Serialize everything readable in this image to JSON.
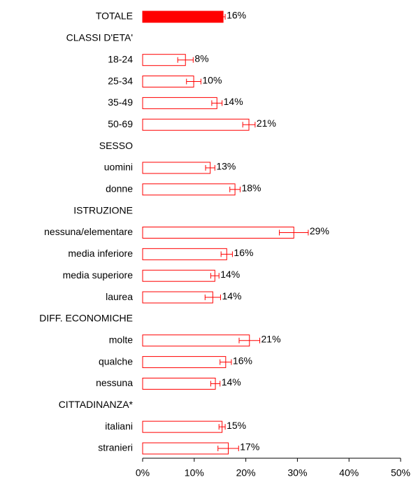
{
  "chart_data": {
    "type": "bar",
    "orientation": "horizontal",
    "color": "#ff0000",
    "categories": [
      "TOTALE",
      "CLASSI D'ETA'",
      "18-24",
      "25-34",
      "35-49",
      "50-69",
      "SESSO",
      "uomini",
      "donne",
      "ISTRUZIONE",
      "nessuna/elementare",
      "media inferiore",
      "media superiore",
      "laurea",
      "DIFF. ECONOMICHE",
      "molte",
      "qualche",
      "nessuna",
      "CITTADINANZA*",
      "italiani",
      "stranieri"
    ],
    "values": [
      15.6,
      null,
      8.3,
      9.9,
      14.4,
      20.6,
      null,
      13.1,
      17.9,
      null,
      29.3,
      16.3,
      14.0,
      13.6,
      null,
      20.7,
      16.1,
      14.1,
      null,
      15.4,
      16.6
    ],
    "errors": [
      0.4,
      null,
      1.5,
      1.4,
      1.0,
      1.2,
      null,
      0.9,
      1.0,
      null,
      2.8,
      1.1,
      0.8,
      1.5,
      null,
      2.0,
      1.1,
      0.9,
      null,
      0.6,
      2.0
    ],
    "value_labels": [
      "16%",
      null,
      "8%",
      "10%",
      "14%",
      "21%",
      null,
      "13%",
      "18%",
      null,
      "29%",
      "16%",
      "14%",
      "14%",
      null,
      "21%",
      "16%",
      "14%",
      null,
      "15%",
      "17%"
    ],
    "bar_fills": [
      "#ff0000",
      null,
      "#ffffff",
      "#ffffff",
      "#ffffff",
      "#ffffff",
      null,
      "#ffffff",
      "#ffffff",
      null,
      "#ffffff",
      "#ffffff",
      "#ffffff",
      "#ffffff",
      null,
      "#ffffff",
      "#ffffff",
      "#ffffff",
      null,
      "#ffffff",
      "#ffffff"
    ],
    "xlim": [
      0,
      50
    ],
    "xticks": [
      {
        "value": 0,
        "label": "0%"
      },
      {
        "value": 10,
        "label": "10%"
      },
      {
        "value": 20,
        "label": "20%"
      },
      {
        "value": 30,
        "label": "30%"
      },
      {
        "value": 40,
        "label": "40%"
      },
      {
        "value": 50,
        "label": "50%"
      }
    ],
    "grid": false
  }
}
